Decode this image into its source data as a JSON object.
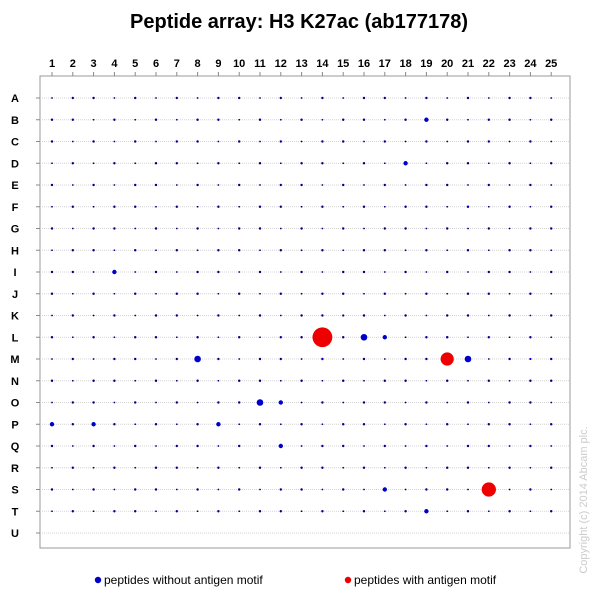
{
  "chart_data": {
    "type": "scatter",
    "title": "Peptide array: H3 K27ac (ab177178)",
    "x_categories": [
      "1",
      "2",
      "3",
      "4",
      "5",
      "6",
      "7",
      "8",
      "9",
      "10",
      "11",
      "12",
      "13",
      "14",
      "15",
      "16",
      "17",
      "18",
      "19",
      "20",
      "21",
      "22",
      "23",
      "24",
      "25"
    ],
    "y_categories": [
      "A",
      "B",
      "C",
      "D",
      "E",
      "F",
      "G",
      "H",
      "I",
      "J",
      "K",
      "L",
      "M",
      "N",
      "O",
      "P",
      "Q",
      "R",
      "S",
      "T",
      "U"
    ],
    "grid": true,
    "legend_position": "bottom",
    "series": [
      {
        "name": "peptides without antigen motif",
        "color": "#0000cc",
        "points": [
          {
            "col": "19",
            "row": "B",
            "size": 2
          },
          {
            "col": "18",
            "row": "D",
            "size": 2
          },
          {
            "col": "4",
            "row": "I",
            "size": 2
          },
          {
            "col": "16",
            "row": "L",
            "size": 3
          },
          {
            "col": "17",
            "row": "L",
            "size": 2
          },
          {
            "col": "20",
            "row": "L",
            "size": 1
          },
          {
            "col": "8",
            "row": "M",
            "size": 3
          },
          {
            "col": "21",
            "row": "M",
            "size": 3
          },
          {
            "col": "24",
            "row": "M",
            "size": 1
          },
          {
            "col": "11",
            "row": "O",
            "size": 3
          },
          {
            "col": "12",
            "row": "O",
            "size": 2
          },
          {
            "col": "1",
            "row": "P",
            "size": 2
          },
          {
            "col": "3",
            "row": "P",
            "size": 2
          },
          {
            "col": "9",
            "row": "P",
            "size": 2
          },
          {
            "col": "12",
            "row": "Q",
            "size": 2
          },
          {
            "col": "17",
            "row": "S",
            "size": 2
          },
          {
            "col": "19",
            "row": "T",
            "size": 2
          },
          {
            "col": "14",
            "row": "M",
            "size": 1
          },
          {
            "col": "15",
            "row": "K",
            "size": 1
          },
          {
            "col": "21",
            "row": "F",
            "size": 1
          }
        ]
      },
      {
        "name": "peptides with antigen motif",
        "color": "#ee0000",
        "points": [
          {
            "col": "14",
            "row": "L",
            "size": 9
          },
          {
            "col": "20",
            "row": "M",
            "size": 6
          },
          {
            "col": "22",
            "row": "S",
            "size": 6.5
          }
        ]
      }
    ],
    "background_dot_color": "#00008b",
    "copyright": "Copyright (c) 2014 Abcam plc."
  }
}
